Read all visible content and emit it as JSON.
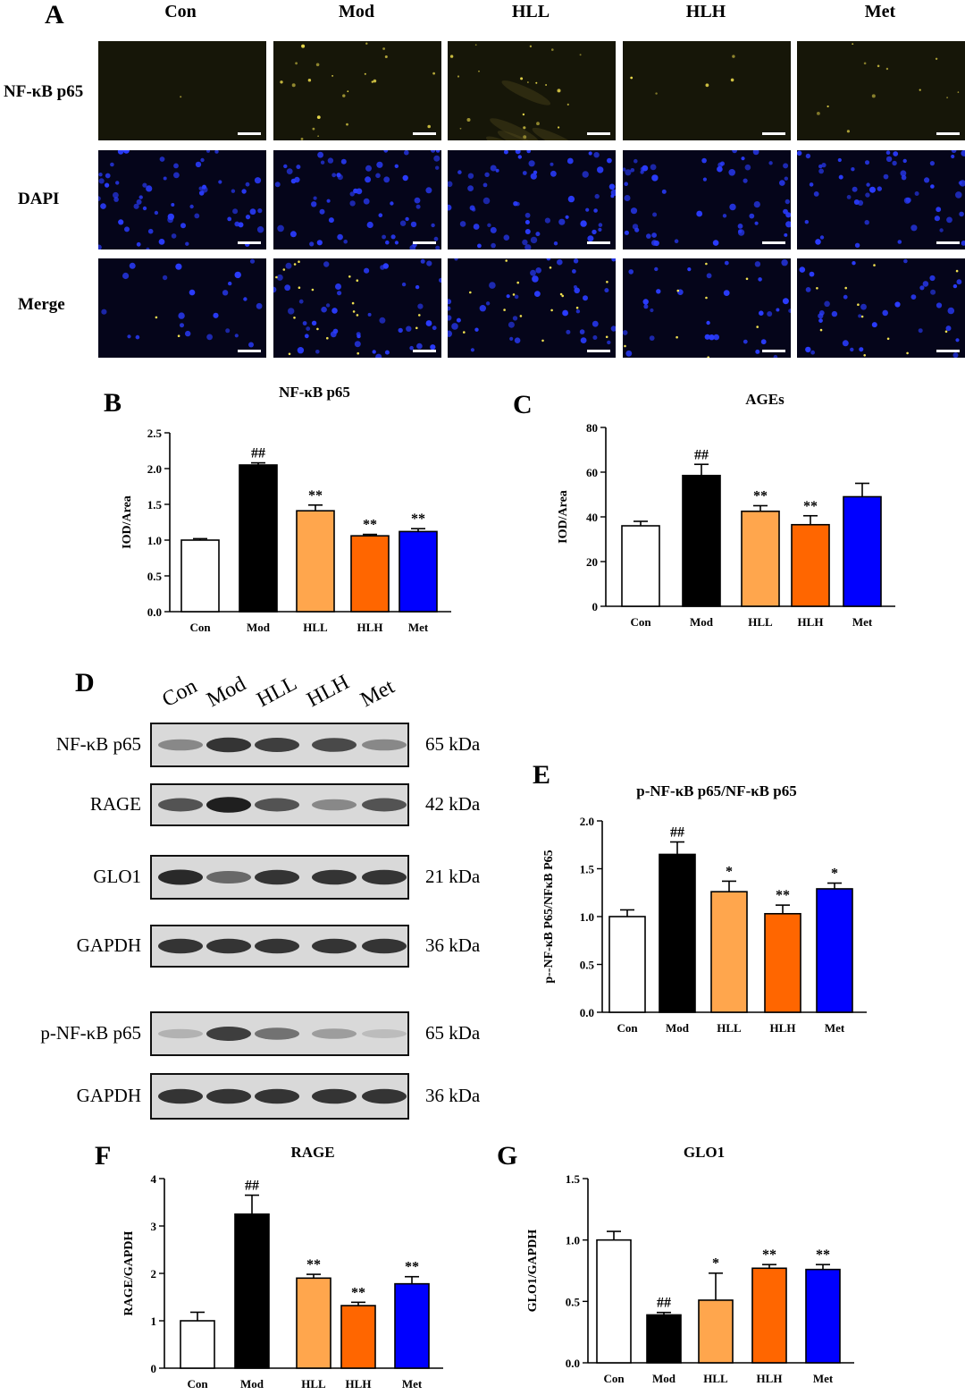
{
  "panelA": {
    "letter": "A",
    "columns": [
      "Con",
      "Mod",
      "HLL",
      "HLH",
      "Met"
    ],
    "rows": [
      "NF-κB p65",
      "DAPI",
      "Merge"
    ],
    "images": [
      {
        "row": "NF-κB p65",
        "signal": [
          0.02,
          0.55,
          0.5,
          0.12,
          0.3
        ]
      },
      {
        "row": "DAPI",
        "signal": [
          1,
          1,
          1,
          0.8,
          0.8
        ]
      },
      {
        "row": "Merge",
        "signal": [
          0.05,
          0.6,
          0.5,
          0.25,
          0.35
        ]
      }
    ]
  },
  "panelD": {
    "letter": "D",
    "lanes": [
      "Con",
      "Mod",
      "HLL",
      "HLH",
      "Met"
    ],
    "blots": [
      {
        "label": "NF-κB p65",
        "kda": "65 kDa",
        "intensity": [
          0.45,
          0.85,
          0.8,
          0.75,
          0.45
        ]
      },
      {
        "label": "RAGE",
        "kda": "42 kDa",
        "intensity": [
          0.7,
          0.95,
          0.7,
          0.45,
          0.7
        ]
      },
      {
        "label": "GLO1",
        "kda": "21 kDa",
        "intensity": [
          0.9,
          0.6,
          0.85,
          0.85,
          0.85
        ]
      },
      {
        "label": "GAPDH",
        "kda": "36 kDa",
        "intensity": [
          0.85,
          0.85,
          0.85,
          0.85,
          0.85
        ]
      },
      {
        "label": "p-NF-κB p65",
        "kda": "65 kDa",
        "intensity": [
          0.25,
          0.8,
          0.55,
          0.35,
          0.2
        ]
      },
      {
        "label": "GAPDH",
        "kda": "36 kDa",
        "intensity": [
          0.85,
          0.85,
          0.85,
          0.85,
          0.85
        ]
      }
    ]
  },
  "colors": {
    "Con": "#ffffff",
    "Mod": "#000000",
    "HLL": "#ffa64d",
    "HLH": "#ff6600",
    "Met": "#0000ff"
  },
  "chart_data": [
    {
      "id": "B",
      "letter": "B",
      "type": "bar",
      "title": "NF-κB p65",
      "ylabel": "IOD/Area",
      "categories": [
        "Con",
        "Mod",
        "HLL",
        "HLH",
        "Met"
      ],
      "values": [
        1.0,
        2.05,
        1.41,
        1.06,
        1.12
      ],
      "errors": [
        0.02,
        0.03,
        0.08,
        0.02,
        0.04
      ],
      "annotations": [
        "",
        "##",
        "**",
        "**",
        "**"
      ],
      "ylim": [
        0,
        2.5
      ],
      "yticks": [
        "0.0",
        "0.5",
        "1.0",
        "1.5",
        "2.0",
        "2.5"
      ]
    },
    {
      "id": "C",
      "letter": "C",
      "type": "bar",
      "title": "AGEs",
      "ylabel": "IOD/Area",
      "categories": [
        "Con",
        "Mod",
        "HLL",
        "HLH",
        "Met"
      ],
      "values": [
        36,
        58.5,
        42.5,
        36.5,
        49
      ],
      "errors": [
        2,
        5,
        2.5,
        4,
        6
      ],
      "annotations": [
        "",
        "##",
        "**",
        "**",
        ""
      ],
      "ylim": [
        0,
        80
      ],
      "yticks": [
        "0",
        "20",
        "40",
        "60",
        "80"
      ]
    },
    {
      "id": "E",
      "letter": "E",
      "type": "bar",
      "title": "p-NF-κB p65/NF-κB p65",
      "ylabel": "p--NF-κB P65/NFκB P65",
      "categories": [
        "Con",
        "Mod",
        "HLL",
        "HLH",
        "Met"
      ],
      "values": [
        1.0,
        1.65,
        1.26,
        1.03,
        1.29
      ],
      "errors": [
        0.07,
        0.13,
        0.11,
        0.09,
        0.06
      ],
      "annotations": [
        "",
        "##",
        "*",
        "**",
        "*"
      ],
      "ylim": [
        0,
        2.0
      ],
      "yticks": [
        "0.0",
        "0.5",
        "1.0",
        "1.5",
        "2.0"
      ]
    },
    {
      "id": "F",
      "letter": "F",
      "type": "bar",
      "title": "RAGE",
      "ylabel": "RAGE/GAPDH",
      "categories": [
        "Con",
        "Mod",
        "HLL",
        "HLH",
        "Met"
      ],
      "values": [
        1.0,
        3.25,
        1.9,
        1.32,
        1.78
      ],
      "errors": [
        0.18,
        0.4,
        0.08,
        0.07,
        0.15
      ],
      "annotations": [
        "",
        "##",
        "**",
        "**",
        "**"
      ],
      "ylim": [
        0,
        4
      ],
      "yticks": [
        "0",
        "1",
        "2",
        "3",
        "4"
      ]
    },
    {
      "id": "G",
      "letter": "G",
      "type": "bar",
      "title": "GLO1",
      "ylabel": "GLO1/GAPDH",
      "categories": [
        "Con",
        "Mod",
        "HLL",
        "HLH",
        "Met"
      ],
      "values": [
        1.0,
        0.39,
        0.51,
        0.77,
        0.76
      ],
      "errors": [
        0.07,
        0.02,
        0.22,
        0.03,
        0.04
      ],
      "annotations": [
        "",
        "##",
        "*",
        "**",
        "**"
      ],
      "ylim": [
        0,
        1.5
      ],
      "yticks": [
        "0.0",
        "0.5",
        "1.0",
        "1.5"
      ]
    }
  ]
}
